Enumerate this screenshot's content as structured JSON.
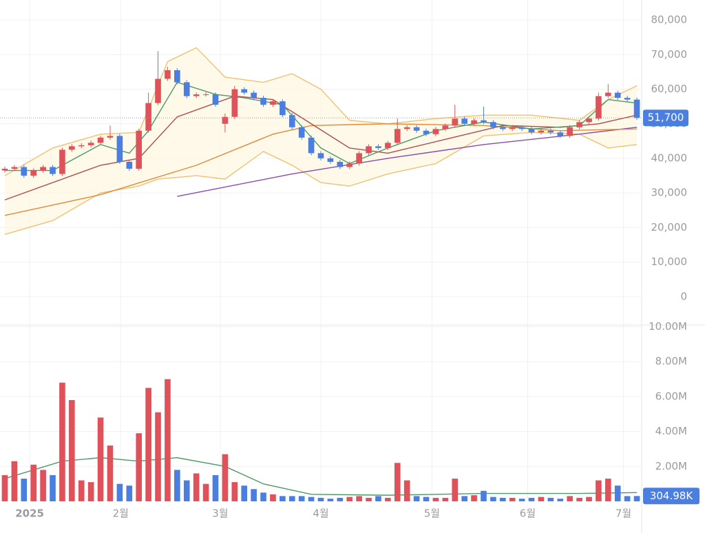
{
  "chart_data": {
    "type": "candlestick",
    "xlim": [
      -0.5,
      66.5
    ],
    "xticks": [
      {
        "value": 2.6,
        "label": "2025"
      },
      {
        "value": 12.1,
        "label": "2월"
      },
      {
        "value": 22.5,
        "label": "3월"
      },
      {
        "value": 33,
        "label": "4월"
      },
      {
        "value": 44.6,
        "label": "5월"
      },
      {
        "value": 54.6,
        "label": "6월"
      },
      {
        "value": 64.6,
        "label": "7월"
      }
    ],
    "ylim": [
      -8200,
      85800
    ],
    "yticks": [
      {
        "value": 0,
        "label": "0"
      },
      {
        "value": 10000,
        "label": "10,000"
      },
      {
        "value": 20000,
        "label": "20,000"
      },
      {
        "value": 30000,
        "label": "30,000"
      },
      {
        "value": 40000,
        "label": "40,000"
      },
      {
        "value": 50000,
        "label": "50,000"
      },
      {
        "value": 60000,
        "label": "60,000"
      },
      {
        "value": 70000,
        "label": "70,000"
      },
      {
        "value": 80000,
        "label": "80,000"
      }
    ],
    "vlim": [
      0,
      10100000
    ],
    "vticks": [
      {
        "value": 2000000,
        "label": "2.00M"
      },
      {
        "value": 4000000,
        "label": "4.00M"
      },
      {
        "value": 6000000,
        "label": "6.00M"
      },
      {
        "value": 8000000,
        "label": "8.00M"
      },
      {
        "value": 10000000,
        "label": "10.00M"
      }
    ],
    "grid": true,
    "up_color": "#e0525a",
    "down_color": "#4a7fe0",
    "open": [
      36500,
      37000,
      37500,
      35000,
      36500,
      37500,
      35500,
      42500,
      43500,
      43800,
      44500,
      46000,
      46500,
      39000,
      37000,
      48000,
      56000,
      63000,
      65500,
      62000,
      58000,
      58500,
      58500,
      50000,
      52000,
      60000,
      59000,
      57500,
      55500,
      56500,
      52500,
      49000,
      46000,
      41500,
      40000,
      39000,
      37500,
      38500,
      41500,
      43500,
      43000,
      44500,
      48500,
      49000,
      48000,
      47000,
      48500,
      49500,
      51500,
      50000,
      51000,
      50500,
      49000,
      48500,
      49000,
      48500,
      47500,
      48000,
      47500,
      46500,
      49000,
      50500,
      51500,
      58000,
      59000,
      57500,
      57000
    ],
    "high": [
      37600,
      38100,
      38100,
      37100,
      38100,
      38100,
      43100,
      44100,
      44400,
      45100,
      46600,
      49500,
      47100,
      39600,
      48600,
      59000,
      71000,
      66500,
      66100,
      62600,
      59100,
      59100,
      59100,
      53000,
      61000,
      60600,
      59600,
      58100,
      57100,
      57100,
      53100,
      49600,
      46600,
      42100,
      40600,
      39600,
      39100,
      42100,
      44100,
      44100,
      45100,
      51500,
      49600,
      49600,
      48600,
      49100,
      50100,
      55500,
      52100,
      51600,
      55000,
      51100,
      49600,
      49600,
      49600,
      49100,
      48600,
      48600,
      48100,
      49600,
      51100,
      52100,
      59000,
      61500,
      59600,
      58100,
      57600
    ],
    "low": [
      35900,
      36400,
      34400,
      34400,
      35900,
      34900,
      34900,
      41900,
      42900,
      43200,
      43900,
      45400,
      38400,
      36400,
      36400,
      47400,
      55400,
      62400,
      61400,
      57400,
      57400,
      57900,
      54900,
      47500,
      51400,
      58400,
      56900,
      54900,
      54900,
      51900,
      48400,
      45400,
      40900,
      39400,
      38400,
      36900,
      36900,
      37900,
      40900,
      42400,
      42400,
      43900,
      47900,
      47400,
      46400,
      46400,
      47900,
      48900,
      49400,
      49400,
      49900,
      48400,
      47900,
      47900,
      47900,
      46900,
      46900,
      46900,
      45900,
      45900,
      48400,
      49900,
      50900,
      57400,
      56900,
      56400,
      51100
    ],
    "close": [
      37000,
      37500,
      35000,
      36500,
      37500,
      35500,
      42500,
      43500,
      43800,
      44500,
      46000,
      46500,
      39000,
      37000,
      48000,
      56000,
      63000,
      65500,
      62000,
      58000,
      58500,
      58500,
      55500,
      52000,
      60000,
      59000,
      57500,
      55500,
      56500,
      52500,
      49000,
      46000,
      41500,
      40000,
      39000,
      37500,
      38500,
      41500,
      43500,
      43000,
      44500,
      48500,
      49000,
      48000,
      47000,
      48500,
      49500,
      51500,
      50000,
      51000,
      50500,
      49000,
      48500,
      49000,
      48500,
      47500,
      48000,
      47500,
      46500,
      49000,
      50500,
      51500,
      58000,
      59000,
      57500,
      57000,
      51700
    ],
    "volume": [
      1500000,
      2300000,
      1300000,
      2100000,
      1800000,
      1500000,
      6800000,
      5800000,
      1200000,
      1100000,
      4800000,
      3200000,
      1000000,
      900000,
      3900000,
      6500000,
      5100000,
      7000000,
      1800000,
      1200000,
      1600000,
      1000000,
      1500000,
      2700000,
      1100000,
      900000,
      700000,
      500000,
      400000,
      300000,
      300000,
      300000,
      250000,
      200000,
      150000,
      200000,
      250000,
      300000,
      200000,
      300000,
      200000,
      2200000,
      1200000,
      300000,
      250000,
      200000,
      200000,
      1300000,
      300000,
      350000,
      600000,
      250000,
      200000,
      200000,
      150000,
      200000,
      250000,
      200000,
      150000,
      300000,
      200000,
      250000,
      1200000,
      1300000,
      900000,
      300000,
      304980
    ],
    "last_price_label": "51,700",
    "last_volume_label": "304.98K",
    "lines": [
      {
        "color": "#f0c070",
        "x": [
          0,
          5,
          10,
          14,
          17,
          20,
          23,
          27,
          30,
          33,
          36,
          40,
          45,
          50,
          55,
          60,
          63,
          66
        ],
        "values": [
          35000,
          43000,
          47000,
          47500,
          68000,
          72000,
          63500,
          62000,
          64500,
          60000,
          51000,
          50000,
          51500,
          52500,
          52500,
          51000,
          57000,
          61000
        ]
      },
      {
        "color": "#f0c070",
        "x": [
          0,
          5,
          10,
          14,
          16,
          20,
          23,
          27,
          30,
          33,
          36,
          40,
          45,
          50,
          55,
          60,
          63,
          66
        ],
        "values": [
          18000,
          22000,
          30000,
          32000,
          34000,
          35000,
          34000,
          42000,
          38000,
          33000,
          32000,
          35500,
          38500,
          46500,
          47500,
          47000,
          43000,
          44000
        ]
      },
      {
        "color": "#8a4aaa",
        "x": [
          18,
          30,
          40,
          50,
          60,
          66
        ],
        "values": [
          29000,
          35500,
          40000,
          44000,
          47000,
          49000
        ]
      },
      {
        "color": "#e08a3a",
        "x": [
          0,
          10,
          20,
          28,
          32,
          40,
          50,
          58,
          66
        ],
        "values": [
          23500,
          29500,
          38000,
          47000,
          49500,
          50000,
          49500,
          48000,
          48500
        ]
      },
      {
        "color": "#b04a4a",
        "x": [
          0,
          10,
          14,
          18,
          24,
          28,
          32,
          36,
          40,
          46,
          52,
          58,
          62,
          66
        ],
        "values": [
          28000,
          38000,
          40000,
          52000,
          58000,
          57000,
          50000,
          43000,
          41500,
          45500,
          49500,
          49000,
          50000,
          52500
        ]
      },
      {
        "color": "#4a9a6a",
        "x": [
          0,
          5,
          10,
          13,
          15,
          18,
          22,
          25,
          29,
          33,
          36,
          40,
          45,
          50,
          55,
          60,
          63,
          66
        ],
        "values": [
          36500,
          36500,
          44000,
          41500,
          48000,
          62000,
          58500,
          57500,
          55500,
          43000,
          38500,
          43000,
          48000,
          50500,
          48500,
          49500,
          57000,
          56000
        ]
      }
    ],
    "volume_ma": {
      "color": "#4a9a6a",
      "x": [
        0,
        6,
        10,
        14,
        18,
        23,
        27,
        32,
        40,
        50,
        60,
        66
      ],
      "values": [
        1300000,
        2300000,
        2500000,
        2300000,
        2500000,
        2000000,
        1000000,
        400000,
        350000,
        450000,
        450000,
        500000
      ]
    }
  }
}
